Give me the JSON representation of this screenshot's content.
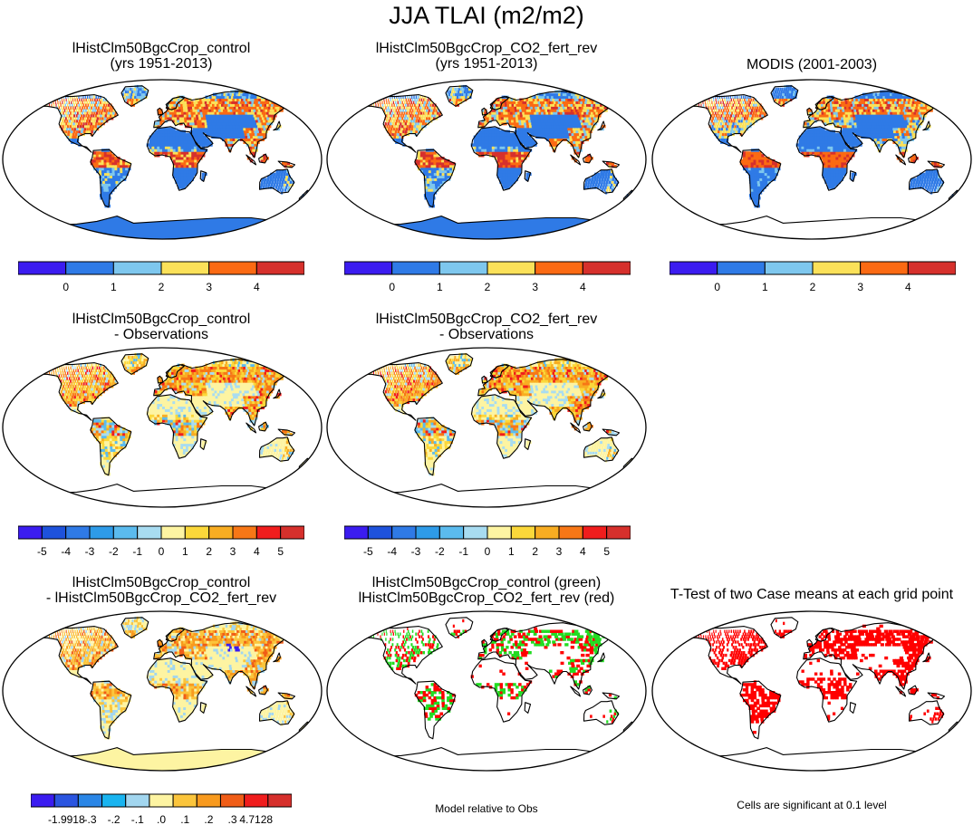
{
  "figure": {
    "title": "JJA TLAI (m2/m2)"
  },
  "panels": [
    {
      "id": "p1",
      "title_lines": [
        "lHistClm50BgcCrop_control",
        "(yrs 1951-2013)"
      ],
      "scheme": "abs",
      "antarctica": "blue"
    },
    {
      "id": "p2",
      "title_lines": [
        "lHistClm50BgcCrop_CO2_fert_rev",
        "(yrs 1951-2013)"
      ],
      "scheme": "abs",
      "antarctica": "blue"
    },
    {
      "id": "p3",
      "title_lines": [
        "MODIS (2001-2003)"
      ],
      "scheme": "abs",
      "antarctica": "none"
    },
    {
      "id": "p4",
      "title_lines": [
        "lHistClm50BgcCrop_control",
        "- Observations"
      ],
      "scheme": "diff",
      "antarctica": "none"
    },
    {
      "id": "p5",
      "title_lines": [
        "lHistClm50BgcCrop_CO2_fert_rev",
        "- Observations"
      ],
      "scheme": "diff",
      "antarctica": "none"
    },
    {
      "id": "p6",
      "title_lines": [
        "lHistClm50BgcCrop_control",
        "- lHistClm50BgcCrop_CO2_fert_rev"
      ],
      "scheme": "casediff",
      "antarctica": "yellow"
    },
    {
      "id": "p7",
      "title_lines": [
        "lHistClm50BgcCrop_control (green)",
        "lHistClm50BgcCrop_CO2_fert_rev (red)"
      ],
      "scheme": "greenred",
      "antarctica": "none"
    },
    {
      "id": "p8",
      "title_lines": [
        "T-Test of two Case means at each grid point"
      ],
      "scheme": "ttest",
      "antarctica": "none"
    }
  ],
  "colorbars": {
    "abs": {
      "colors": [
        "#3b1cf0",
        "#2f7ae6",
        "#7ec7ee",
        "#fbe159",
        "#fb6a13",
        "#d6302c"
      ],
      "labels": [
        "0",
        "1",
        "2",
        "3",
        "4"
      ]
    },
    "diff": {
      "colors": [
        "#3b1cf0",
        "#1e52dc",
        "#2f7ae6",
        "#2e9be8",
        "#5bbbee",
        "#a8dcf1",
        "#fdf4a2",
        "#fbd83a",
        "#f8ad22",
        "#f77716",
        "#f01d1d",
        "#d6302c"
      ],
      "labels": [
        "-5",
        "-4",
        "-3",
        "-2",
        "-1",
        "0",
        "1",
        "2",
        "3",
        "4",
        "5"
      ]
    },
    "casediff": {
      "colors": [
        "#3b1cf0",
        "#2b55e0",
        "#2a86e6",
        "#19b4f0",
        "#a2d6ef",
        "#fdf4a2",
        "#fbc53c",
        "#f89a1e",
        "#f05d17",
        "#f01d1d",
        "#d6302c"
      ],
      "labels": [
        "-1.9918",
        "-.3",
        "-.2",
        "-.1",
        ".0",
        ".1",
        ".2",
        ".3",
        "4.7128"
      ]
    }
  },
  "footnotes": {
    "model_relative": "Model relative to Obs",
    "significance": "Cells are significant at 0.1 level"
  }
}
